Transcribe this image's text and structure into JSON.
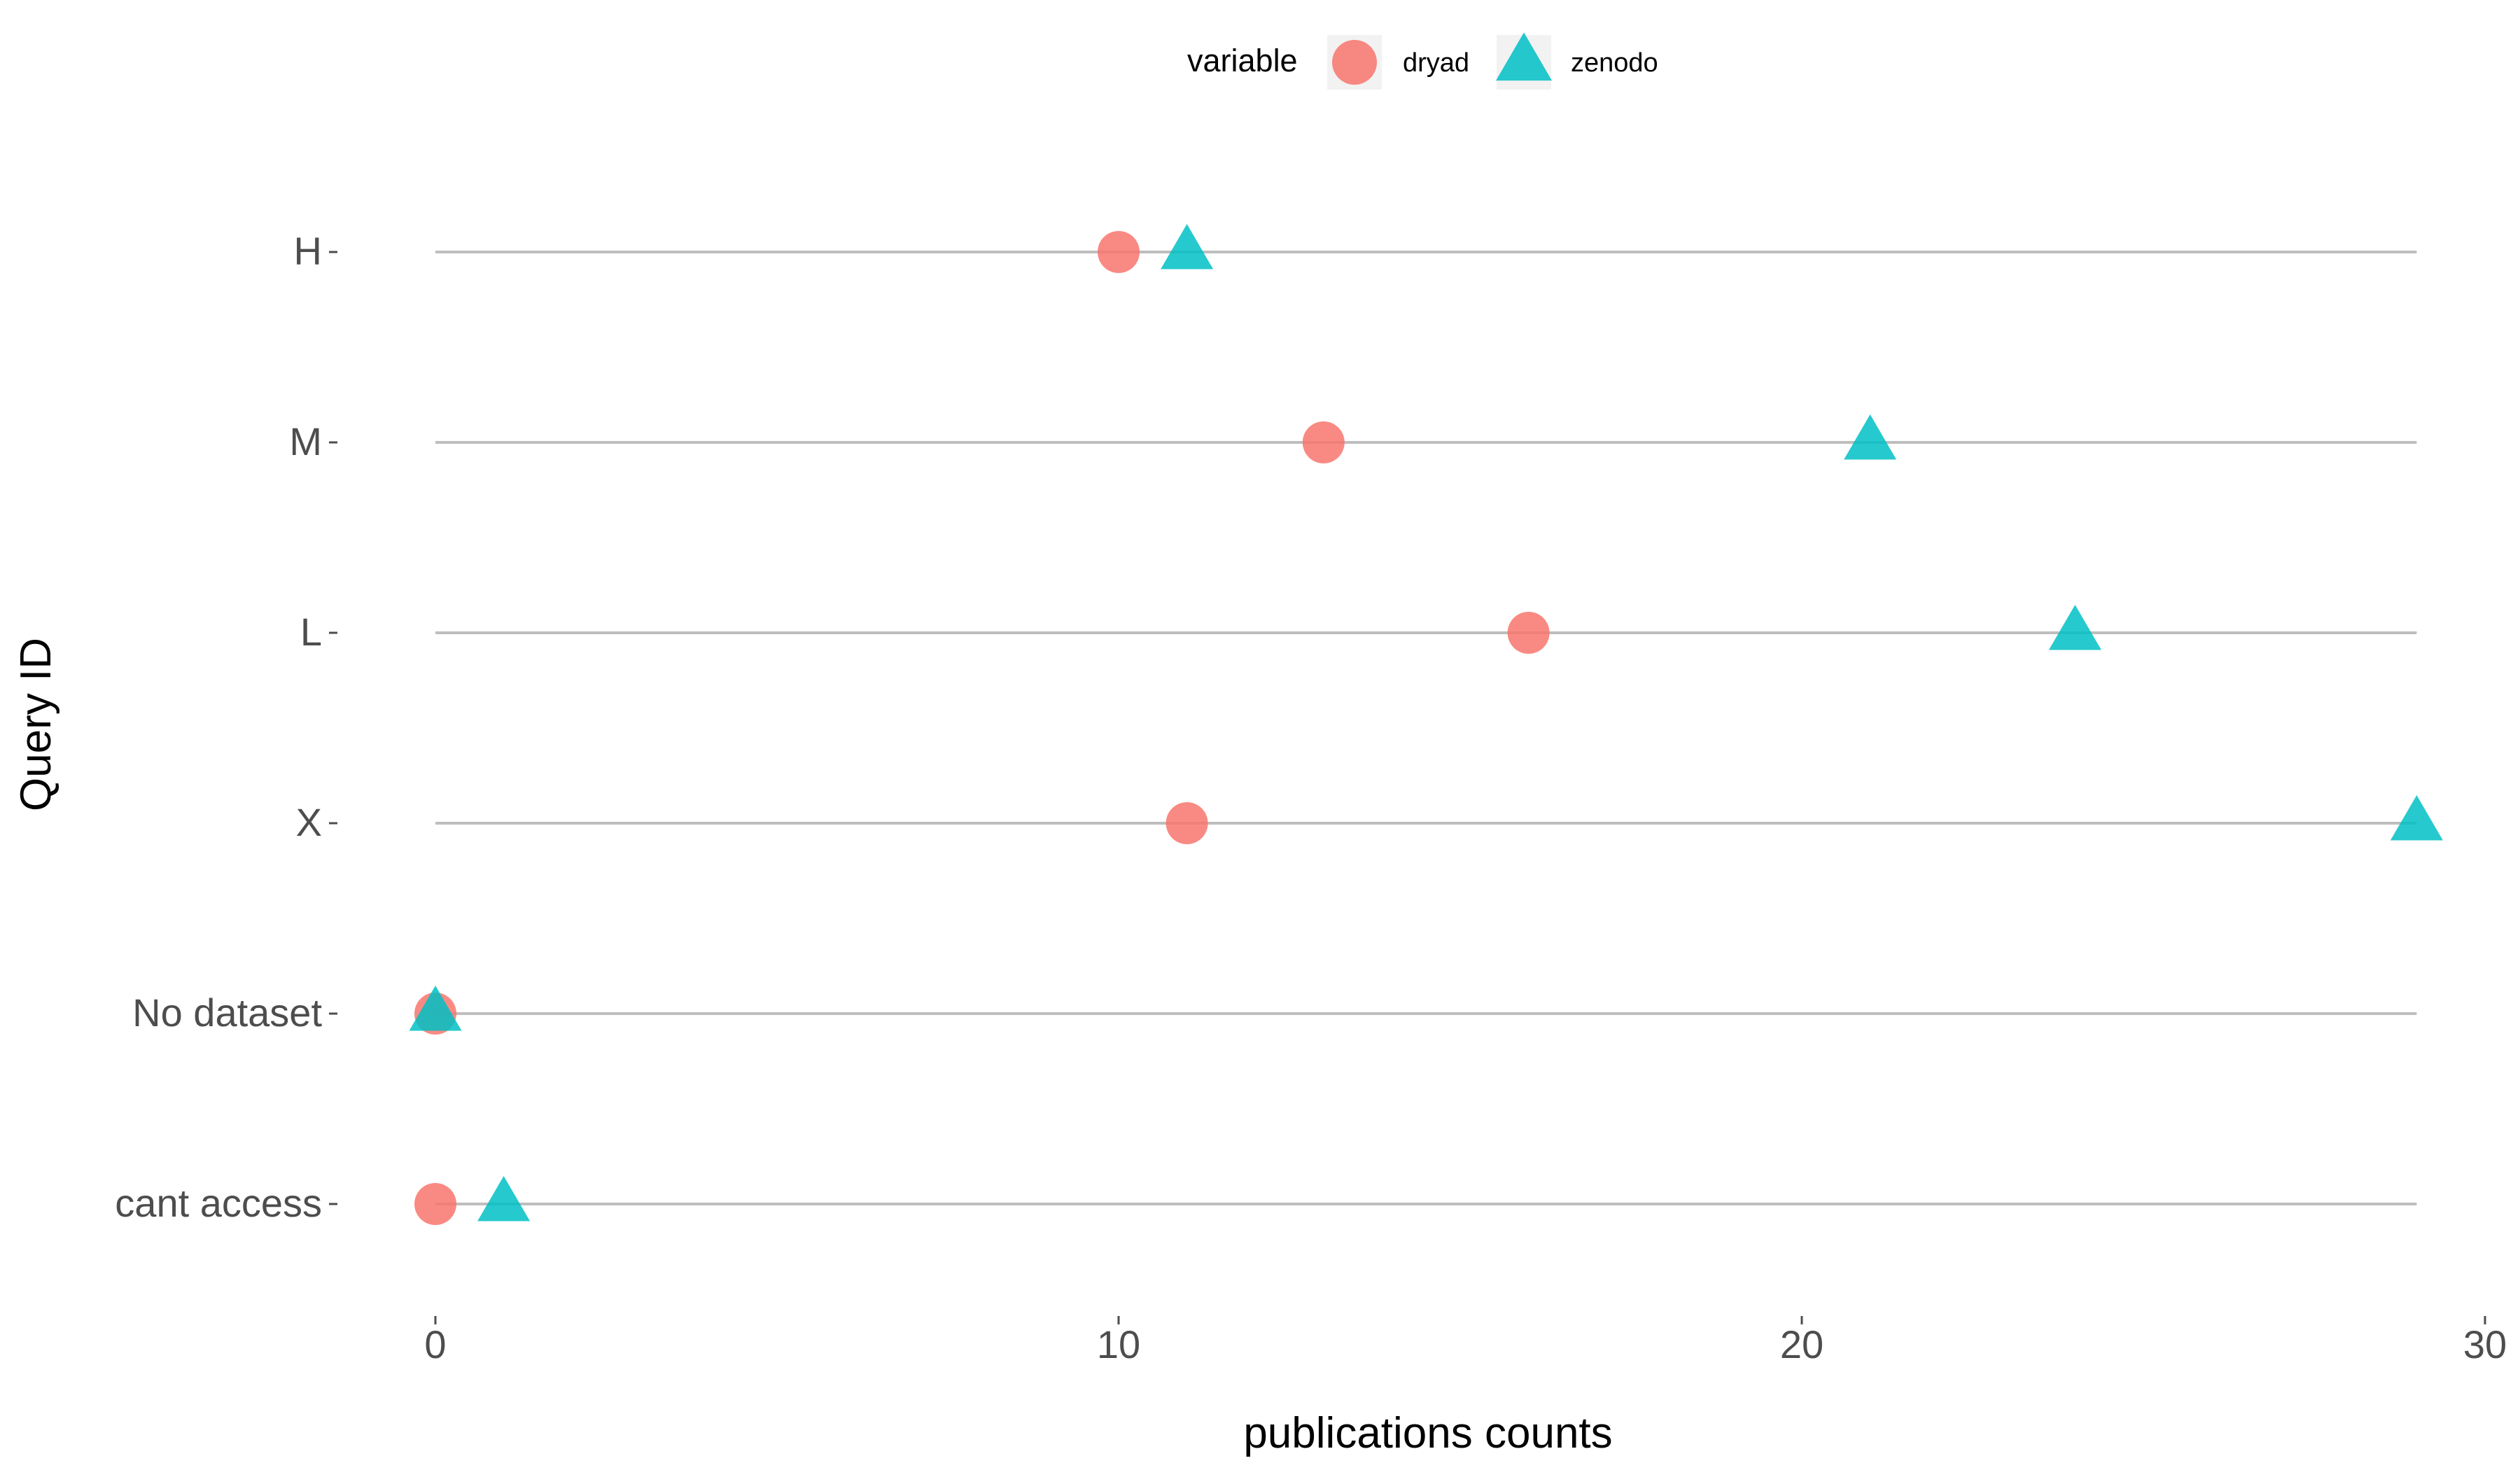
{
  "chart_data": {
    "type": "scatter",
    "xlabel": "publications counts",
    "ylabel": "Query ID",
    "xlim": [
      -3.1,
      30.2
    ],
    "xticks": [
      0,
      10,
      20,
      30
    ],
    "xtick_labels": [
      "0",
      "10",
      "20",
      "30"
    ],
    "categories": [
      "H",
      "M",
      "L",
      "X",
      "No dataset",
      "cant access"
    ],
    "legend": {
      "title": "variable",
      "position": "top"
    },
    "grid": false,
    "series": [
      {
        "name": "dryad",
        "marker": "circle",
        "color": "#F8766D",
        "values": [
          10,
          13,
          16,
          11,
          0,
          0
        ]
      },
      {
        "name": "zenodo",
        "marker": "triangle",
        "color": "#00BFC4",
        "values": [
          11,
          21,
          24,
          29,
          0,
          1
        ]
      }
    ]
  }
}
